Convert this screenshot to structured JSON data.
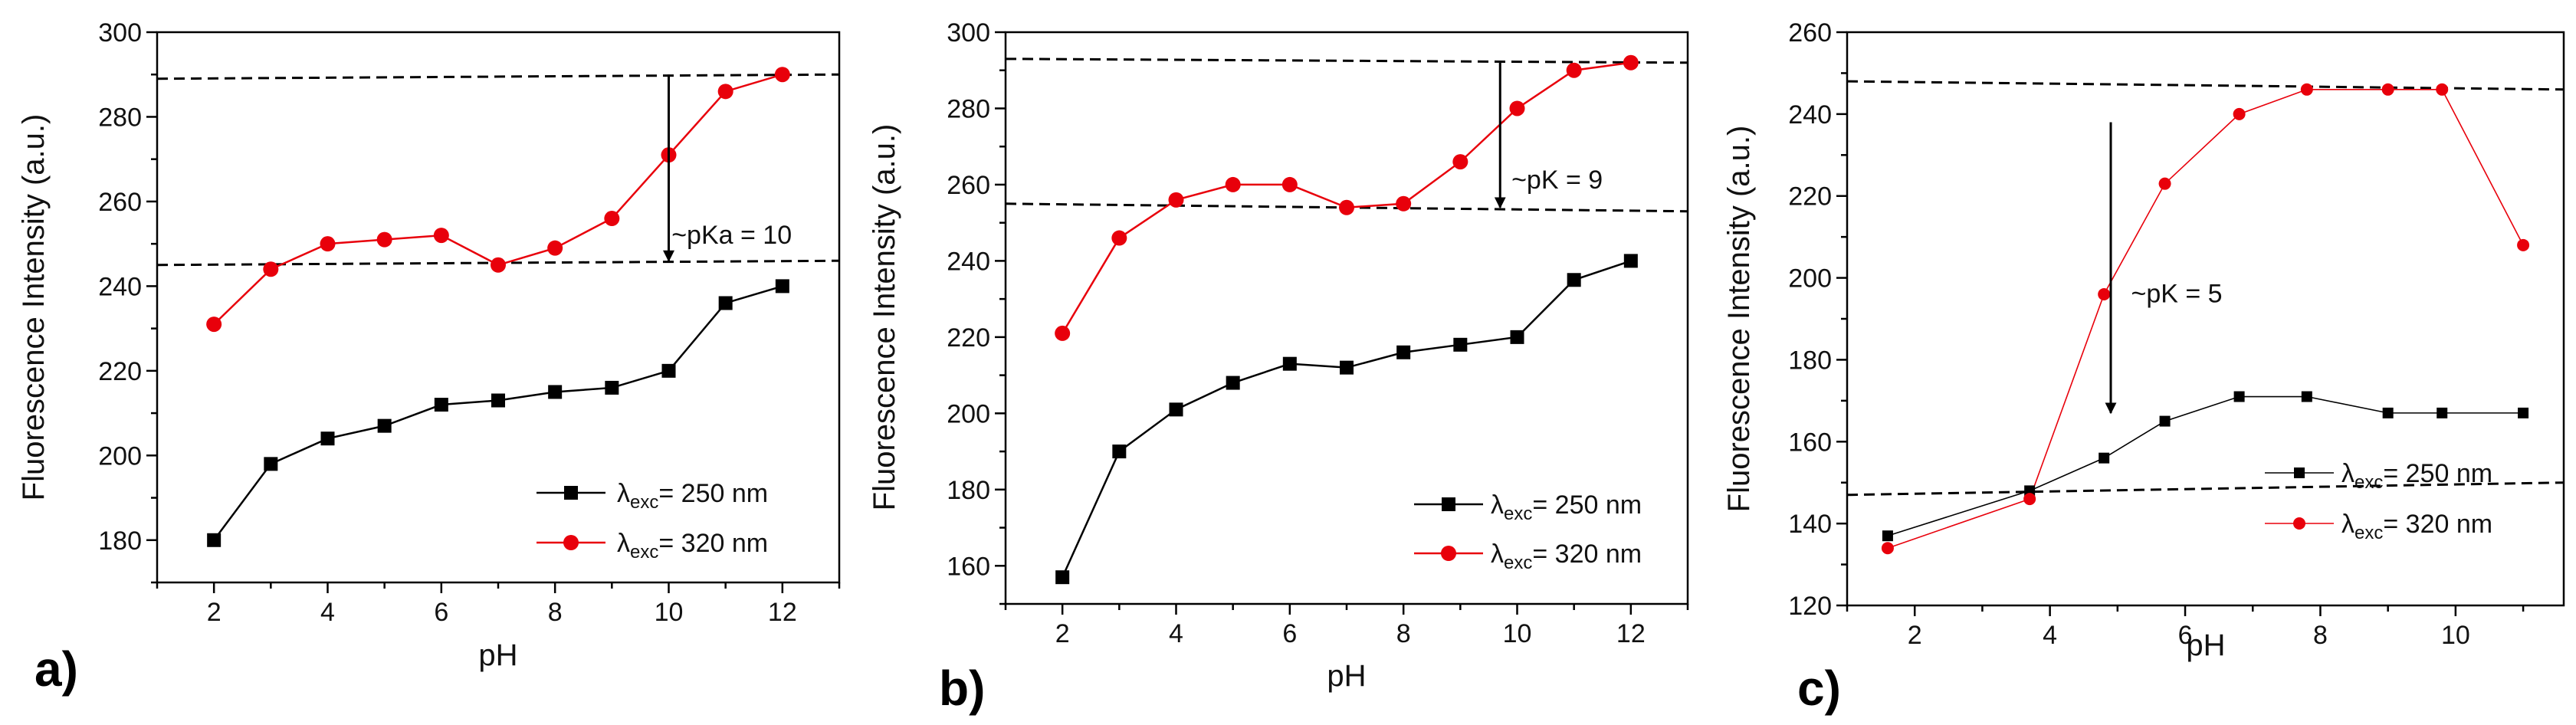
{
  "chart_data": [
    {
      "type": "line",
      "panel_label": "a)",
      "xlabel": "pH",
      "ylabel": "Fluorescence Intensity (a.u.)",
      "xlim": [
        1,
        13
      ],
      "ylim": [
        170,
        300
      ],
      "xticks": [
        2,
        4,
        6,
        8,
        10,
        12
      ],
      "yticks": [
        180,
        200,
        220,
        240,
        260,
        280,
        300
      ],
      "series": [
        {
          "name": "λ exc= 250 nm",
          "label_main": "λ",
          "label_sub": "exc",
          "label_tail": "= 250 nm",
          "color": "#000000",
          "marker": "square",
          "x": [
            2,
            3,
            4,
            5,
            6,
            7,
            8,
            9,
            10,
            11,
            12
          ],
          "y": [
            180,
            198,
            204,
            207,
            212,
            213,
            215,
            216,
            220,
            236,
            240
          ]
        },
        {
          "name": "λ exc= 320 nm",
          "label_main": "λ",
          "label_sub": "exc",
          "label_tail": "= 320 nm",
          "color": "#e8000b",
          "marker": "circle",
          "x": [
            2,
            3,
            4,
            5,
            6,
            7,
            8,
            9,
            10,
            11,
            12
          ],
          "y": [
            231,
            244,
            250,
            251,
            252,
            245,
            249,
            256,
            271,
            286,
            290
          ]
        }
      ],
      "reference_lines": [
        {
          "x": [
            1,
            13
          ],
          "y": [
            289,
            290
          ]
        },
        {
          "x": [
            1,
            13
          ],
          "y": [
            245,
            246
          ]
        }
      ],
      "annotation": {
        "text": "~pKa = 10",
        "arrow_x": 10,
        "arrow_from": 290,
        "arrow_to": 246,
        "text_x": 10.05,
        "text_y": 250
      }
    },
    {
      "type": "line",
      "panel_label": "b)",
      "xlabel": "pH",
      "ylabel": "Fluorescence Intensity (a.u.)",
      "xlim": [
        1,
        13
      ],
      "ylim": [
        150,
        300
      ],
      "xticks": [
        2,
        4,
        6,
        8,
        10,
        12
      ],
      "yticks": [
        160,
        180,
        200,
        220,
        240,
        260,
        280,
        300
      ],
      "series": [
        {
          "name": "λ exc= 250 nm",
          "label_main": "λ",
          "label_sub": "exc",
          "label_tail": "= 250 nm",
          "color": "#000000",
          "marker": "square",
          "x": [
            2,
            3,
            4,
            5,
            6,
            7,
            8,
            9,
            10,
            11,
            12
          ],
          "y": [
            157,
            190,
            201,
            208,
            213,
            212,
            216,
            218,
            220,
            235,
            240
          ]
        },
        {
          "name": "λ exc= 320 nm",
          "label_main": "λ",
          "label_sub": "exc",
          "label_tail": "= 320 nm",
          "color": "#e8000b",
          "marker": "circle",
          "x": [
            2,
            3,
            4,
            5,
            6,
            7,
            8,
            9,
            10,
            11,
            12
          ],
          "y": [
            221,
            246,
            256,
            260,
            260,
            254,
            255,
            266,
            280,
            290,
            292
          ]
        }
      ],
      "reference_lines": [
        {
          "x": [
            1,
            13
          ],
          "y": [
            293,
            292
          ]
        },
        {
          "x": [
            1,
            13
          ],
          "y": [
            255,
            253
          ]
        }
      ],
      "annotation": {
        "text": "~pK = 9",
        "arrow_x": 9.7,
        "arrow_from": 292,
        "arrow_to": 254,
        "text_x": 9.9,
        "text_y": 259
      }
    },
    {
      "type": "line",
      "panel_label": "c)",
      "xlabel": "pH",
      "ylabel": "Fluorescence Intensity (a.u.)",
      "xlim": [
        1,
        11.6
      ],
      "ylim": [
        120,
        260
      ],
      "xticks": [
        2,
        4,
        6,
        8,
        10
      ],
      "yticks": [
        120,
        140,
        160,
        180,
        200,
        220,
        240,
        260
      ],
      "series": [
        {
          "name": "λ exc= 250 nm",
          "label_main": "λ",
          "label_sub": "exc",
          "label_tail": "= 250 nm",
          "color": "#000000",
          "marker": "square",
          "x": [
            1.6,
            3.7,
            4.8,
            5.7,
            6.8,
            7.8,
            9.0,
            9.8,
            11.0
          ],
          "y": [
            137,
            148,
            156,
            165,
            171,
            171,
            167,
            167,
            167
          ]
        },
        {
          "name": "λ exc= 320 nm",
          "label_main": "λ",
          "label_sub": "exc",
          "label_tail": "= 320 nm",
          "color": "#e8000b",
          "marker": "circle",
          "x": [
            1.6,
            3.7,
            4.8,
            5.7,
            6.8,
            7.8,
            9.0,
            9.8,
            11.0
          ],
          "y": [
            134,
            146,
            196,
            223,
            240,
            246,
            246,
            246,
            208
          ]
        }
      ],
      "reference_lines": [
        {
          "x": [
            1,
            11.6
          ],
          "y": [
            248,
            246
          ]
        },
        {
          "x": [
            1,
            11.6
          ],
          "y": [
            147,
            150
          ]
        }
      ],
      "annotation": {
        "text": "~pK = 5",
        "arrow_x": 4.9,
        "arrow_from": 238,
        "arrow_to": 167,
        "text_x": 5.2,
        "text_y": 194
      }
    }
  ]
}
